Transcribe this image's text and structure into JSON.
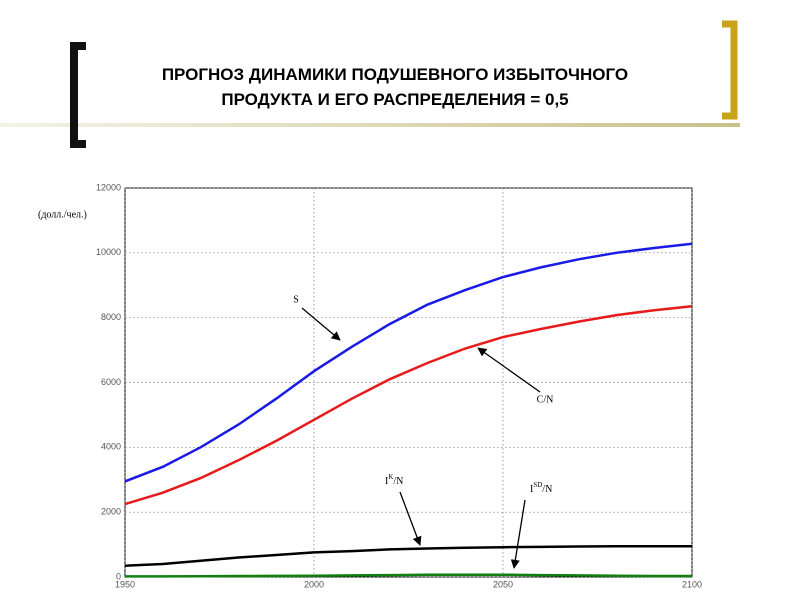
{
  "chart_data": {
    "type": "line",
    "title": [
      "ПРОГНОЗ ДИНАМИКИ ПОДУШЕВНОГО ИЗБЫТОЧНОГО",
      "ПРОДУКТА И ЕГО РАСПРЕДЕЛЕНИЯ   = 0,5"
    ],
    "y_label": "(долл./чел.)",
    "x": [
      1950,
      1960,
      1970,
      1980,
      1990,
      2000,
      2010,
      2020,
      2030,
      2040,
      2050,
      2060,
      2070,
      2080,
      2090,
      2100
    ],
    "series": [
      {
        "name": "S",
        "color": "#1a1ae6",
        "values": [
          2950,
          3400,
          4000,
          4700,
          5500,
          6350,
          7100,
          7800,
          8400,
          8850,
          9250,
          9550,
          9800,
          10000,
          10150,
          10280
        ]
      },
      {
        "name": "C/N",
        "color": "#e61a1a",
        "values": [
          2250,
          2600,
          3050,
          3600,
          4200,
          4850,
          5500,
          6100,
          6600,
          7050,
          7400,
          7650,
          7880,
          8080,
          8230,
          8350
        ]
      },
      {
        "name": {
          "base": "I",
          "sup": "K",
          "rest": "/N"
        },
        "color": "#000000",
        "values": [
          350,
          400,
          500,
          600,
          680,
          760,
          800,
          850,
          880,
          900,
          920,
          930,
          940,
          950,
          950,
          950
        ]
      },
      {
        "name": {
          "base": "I",
          "sup": "SD",
          "rest": "/N"
        },
        "color": "#108010",
        "values": [
          20,
          20,
          25,
          30,
          35,
          40,
          50,
          60,
          70,
          70,
          70,
          60,
          50,
          40,
          30,
          30
        ]
      }
    ],
    "xlim": [
      1950,
      2100
    ],
    "xticks": [
      1950,
      2000,
      2050,
      2100
    ],
    "ylim": [
      0,
      12000
    ],
    "yticks": [
      0,
      2000,
      4000,
      6000,
      8000,
      10000,
      12000
    ],
    "grid": true
  }
}
